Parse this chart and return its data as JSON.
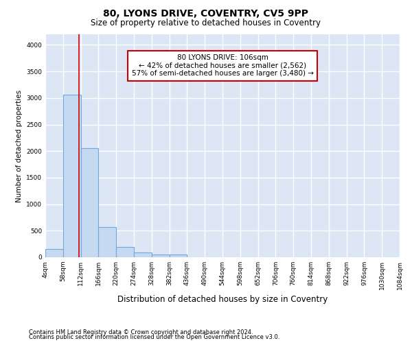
{
  "title1": "80, LYONS DRIVE, COVENTRY, CV5 9PP",
  "title2": "Size of property relative to detached houses in Coventry",
  "xlabel": "Distribution of detached houses by size in Coventry",
  "ylabel": "Number of detached properties",
  "bin_edges": [
    4,
    58,
    112,
    166,
    220,
    274,
    328,
    382,
    436,
    490,
    544,
    598,
    652,
    706,
    760,
    814,
    868,
    922,
    976,
    1030,
    1084
  ],
  "bar_heights": [
    150,
    3060,
    2060,
    570,
    200,
    90,
    50,
    50,
    0,
    0,
    0,
    0,
    0,
    0,
    0,
    0,
    0,
    0,
    0,
    0
  ],
  "bar_color": "#c5d9f1",
  "bar_edge_color": "#6fa8dc",
  "bar_edge_width": 0.8,
  "property_size": 106,
  "red_line_color": "#cc0000",
  "annotation_line1": "80 LYONS DRIVE: 106sqm",
  "annotation_line2": "← 42% of detached houses are smaller (2,562)",
  "annotation_line3": "57% of semi-detached houses are larger (3,480) →",
  "annotation_box_color": "#ffffff",
  "annotation_box_edge_color": "#cc0000",
  "ylim": [
    0,
    4200
  ],
  "yticks": [
    0,
    500,
    1000,
    1500,
    2000,
    2500,
    3000,
    3500,
    4000
  ],
  "footnote1": "Contains HM Land Registry data © Crown copyright and database right 2024.",
  "footnote2": "Contains public sector information licensed under the Open Government Licence v3.0.",
  "fig_background_color": "#ffffff",
  "plot_background_color": "#dce6f5",
  "grid_color": "#ffffff",
  "title1_fontsize": 10,
  "title2_fontsize": 8.5,
  "xlabel_fontsize": 8.5,
  "ylabel_fontsize": 7.5,
  "tick_fontsize": 6.5,
  "annotation_fontsize": 7.5,
  "footnote_fontsize": 6.0
}
